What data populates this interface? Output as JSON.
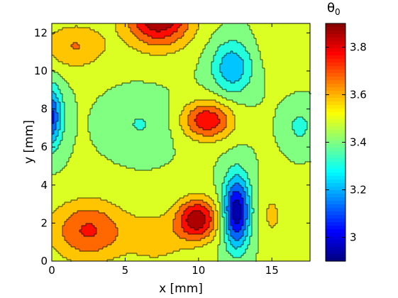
{
  "chart_data": {
    "type": "heatmap",
    "subtype": "filled-contour",
    "xlabel": "x [mm]",
    "ylabel": "y [mm]",
    "xlim": [
      0,
      17.6
    ],
    "ylim": [
      0,
      12.5
    ],
    "xticks": [
      "0",
      "5",
      "10",
      "15"
    ],
    "yticks": [
      "0",
      "2",
      "4",
      "6",
      "8",
      "10",
      "12"
    ],
    "colorbar": {
      "label": "θ",
      "label_subscript": "0",
      "range": [
        2.9,
        3.9
      ],
      "ticks": [
        "3",
        "3.2",
        "3.4",
        "3.6",
        "3.8"
      ],
      "colormap": "jet"
    },
    "background_value": 3.45,
    "features": [
      {
        "x": 7.3,
        "y": 12.9,
        "sx": 2.2,
        "sy": 1.6,
        "amp": 0.46
      },
      {
        "x": 9.9,
        "y": 2.2,
        "sx": 1.4,
        "sy": 1.1,
        "amp": 0.42
      },
      {
        "x": 12.6,
        "y": 2.6,
        "sx": 0.9,
        "sy": 1.9,
        "amp": -0.52
      },
      {
        "x": 12.3,
        "y": 10.2,
        "sx": 1.4,
        "sy": 1.4,
        "amp": -0.26
      },
      {
        "x": 10.6,
        "y": 7.4,
        "sx": 1.7,
        "sy": 1.0,
        "amp": 0.34
      },
      {
        "x": -0.2,
        "y": 7.6,
        "sx": 0.9,
        "sy": 1.6,
        "amp": -0.42
      },
      {
        "x": 6.0,
        "y": 7.2,
        "sx": 2.0,
        "sy": 1.4,
        "amp": -0.1
      },
      {
        "x": 2.5,
        "y": 1.6,
        "sx": 2.6,
        "sy": 1.6,
        "amp": 0.28
      },
      {
        "x": 7.2,
        "y": 1.2,
        "sx": 2.0,
        "sy": 1.3,
        "amp": 0.14
      },
      {
        "x": 15.0,
        "y": 2.4,
        "sx": 1.0,
        "sy": 1.6,
        "amp": 0.1
      },
      {
        "x": 1.6,
        "y": 11.3,
        "sx": 2.2,
        "sy": 1.2,
        "amp": 0.18
      },
      {
        "x": 16.9,
        "y": 7.1,
        "sx": 1.0,
        "sy": 1.1,
        "amp": -0.12
      },
      {
        "x": 15.5,
        "y": 11.2,
        "sx": 1.8,
        "sy": 1.5,
        "amp": 0.05
      }
    ]
  }
}
